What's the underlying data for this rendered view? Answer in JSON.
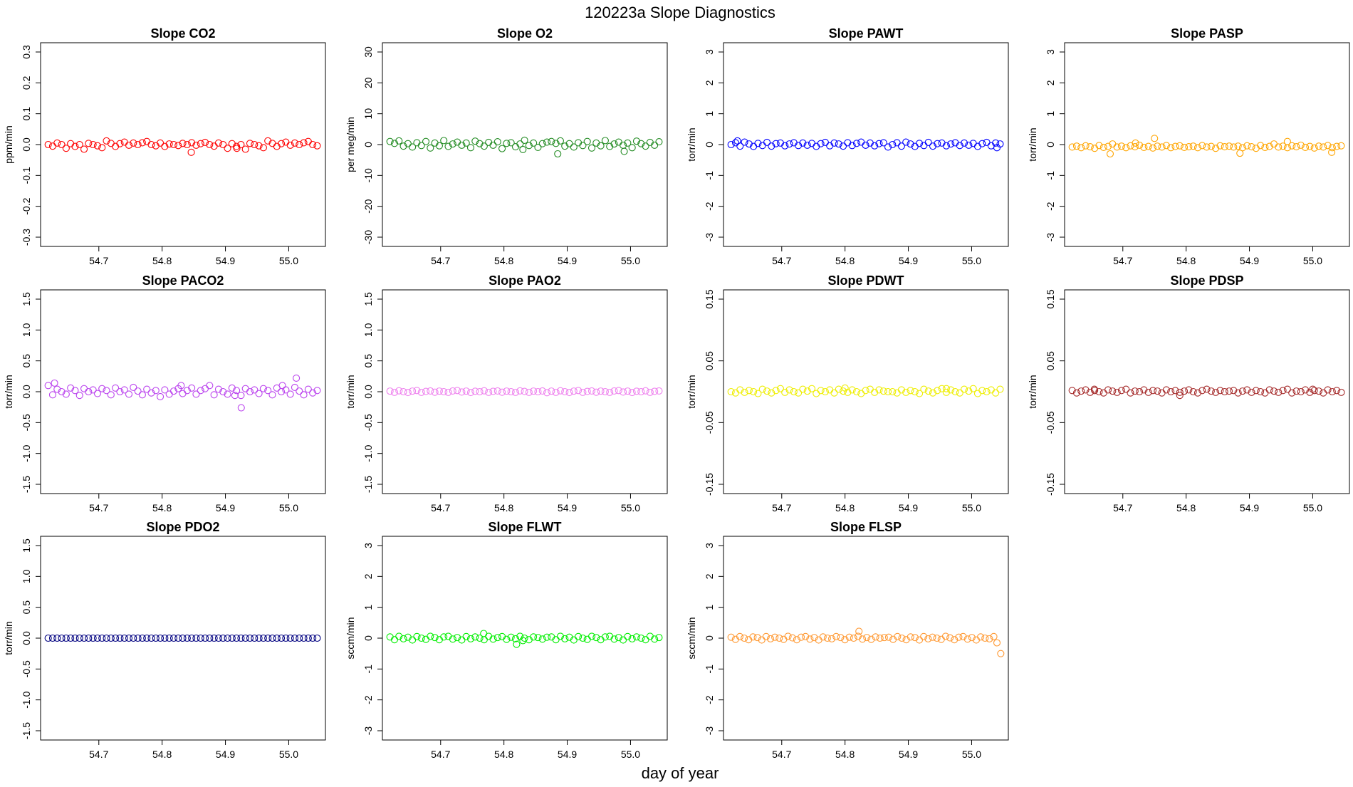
{
  "figure": {
    "title": "120223a   Slope Diagnostics",
    "xlabel": "day of year"
  },
  "chart_data": [
    {
      "type": "scatter",
      "title": "Slope CO2",
      "ylabel": "ppm/min",
      "color": "#ff0000",
      "xlim": [
        54.608,
        55.058
      ],
      "ylim": [
        -0.33,
        0.33
      ],
      "xticks": [
        54.7,
        54.8,
        54.9,
        55.0
      ],
      "yticks": [
        -0.3,
        -0.2,
        -0.1,
        0.0,
        0.1,
        0.2,
        0.3
      ],
      "ytick_labels": [
        "-0.3",
        "-0.2",
        "-0.1",
        "0.0",
        "0.1",
        "0.2",
        "0.3"
      ],
      "x_start": 54.62,
      "x_end": 55.045,
      "base": [
        0,
        -0.005,
        0.005,
        0,
        -0.012,
        0.003,
        -0.006,
        0,
        -0.015,
        0.004,
        0,
        -0.004,
        -0.01,
        0.012,
        0.004,
        -0.006,
        0.003,
        0.008,
        -0.002,
        0.005,
        0,
        0.006,
        0.01,
        0,
        -0.004,
        0.005,
        -0.006,
        0.002,
        0,
        -0.003,
        0.004,
        0,
        0.006,
        -0.002,
        0.003,
        0.007
      ],
      "points": [
        [
          54.846,
          -0.025
        ],
        [
          54.918,
          -0.012
        ]
      ]
    },
    {
      "type": "scatter",
      "title": "Slope O2",
      "ylabel": "per meg/min",
      "color": "#228B22",
      "xlim": [
        54.608,
        55.058
      ],
      "ylim": [
        -33,
        33
      ],
      "xticks": [
        54.7,
        54.8,
        54.9,
        55.0
      ],
      "yticks": [
        -30,
        -20,
        -10,
        0,
        10,
        20,
        30
      ],
      "ytick_labels": [
        "-30",
        "-20",
        "-10",
        "0",
        "10",
        "20",
        "30"
      ],
      "x_start": 54.62,
      "x_end": 55.045,
      "base": [
        1.0,
        0.4,
        1.2,
        -0.5,
        0.3,
        -0.8,
        0.6,
        -0.3,
        1.0,
        -1.1,
        0.5,
        -0.4,
        1.3,
        -0.6,
        0.2,
        0.8,
        -0.2,
        0.5,
        -1.0,
        1.1,
        0.3,
        -0.5,
        0.7,
        -0.2,
        0.9,
        -1.3,
        0.4,
        0.6,
        -0.7,
        0.2,
        1.4,
        -0.3,
        0.5,
        -0.9,
        0.3,
        0.8
      ],
      "points": [
        [
          54.885,
          -3.0
        ],
        [
          54.99,
          -2.2
        ],
        [
          54.83,
          -1.6
        ]
      ]
    },
    {
      "type": "scatter",
      "title": "Slope PAWT",
      "ylabel": "torr/min",
      "color": "#0000ff",
      "xlim": [
        54.608,
        55.058
      ],
      "ylim": [
        -3.3,
        3.3
      ],
      "xticks": [
        54.7,
        54.8,
        54.9,
        55.0
      ],
      "yticks": [
        -3,
        -2,
        -1,
        0,
        1,
        2,
        3
      ],
      "ytick_labels": [
        "-3",
        "-2",
        "-1",
        "0",
        "1",
        "2",
        "3"
      ],
      "x_start": 54.62,
      "x_end": 55.045,
      "base": [
        0.0,
        0.06,
        -0.05,
        0.08,
        0.02,
        -0.06,
        0.04,
        -0.03,
        0.07,
        -0.05,
        0.03,
        0.05,
        -0.04,
        0.02,
        0.06,
        -0.03,
        0.05,
        -0.02,
        0.04,
        -0.06,
        0.03,
        0.07,
        -0.04,
        0.05,
        0.02,
        -0.05,
        0.06,
        -0.03,
        0.04,
        0.08,
        -0.02,
        0.05,
        -0.04,
        0.03,
        0.06,
        -0.08
      ],
      "points": [
        [
          54.63,
          0.12
        ],
        [
          55.04,
          -0.1
        ]
      ]
    },
    {
      "type": "scatter",
      "title": "Slope PASP",
      "ylabel": "torr/min",
      "color": "#ffa500",
      "xlim": [
        54.608,
        55.058
      ],
      "ylim": [
        -3.3,
        3.3
      ],
      "xticks": [
        54.7,
        54.8,
        54.9,
        55.0
      ],
      "yticks": [
        -3,
        -2,
        -1,
        0,
        1,
        2,
        3
      ],
      "ytick_labels": [
        "-3",
        "-2",
        "-1",
        "0",
        "1",
        "2",
        "3"
      ],
      "x_start": 54.62,
      "x_end": 55.045,
      "base": [
        -0.08,
        -0.05,
        -0.1,
        -0.04,
        -0.07,
        -0.12,
        -0.03,
        -0.09,
        -0.06,
        0.02,
        -0.08,
        -0.05,
        -0.1,
        -0.04,
        -0.07,
        -0.02,
        -0.09,
        -0.06,
        -0.11,
        -0.05,
        -0.08,
        -0.03,
        -0.1,
        -0.06,
        -0.04,
        -0.09,
        -0.07,
        -0.05,
        -0.1,
        -0.03,
        -0.08,
        -0.06,
        -0.12,
        -0.04,
        -0.07,
        -0.05
      ],
      "points": [
        [
          54.75,
          0.2
        ],
        [
          54.68,
          -0.3
        ],
        [
          54.885,
          -0.28
        ],
        [
          55.03,
          -0.25
        ],
        [
          54.96,
          0.1
        ],
        [
          54.72,
          0.05
        ]
      ]
    },
    {
      "type": "scatter",
      "title": "Slope PACO2",
      "ylabel": "torr/min",
      "color": "#bb44ee",
      "xlim": [
        54.608,
        55.058
      ],
      "ylim": [
        -1.65,
        1.65
      ],
      "xticks": [
        54.7,
        54.8,
        54.9,
        55.0
      ],
      "yticks": [
        -1.5,
        -1.0,
        -0.5,
        0.0,
        0.5,
        1.0,
        1.5
      ],
      "ytick_labels": [
        "-1.5",
        "-1.0",
        "-0.5",
        "0.0",
        "0.5",
        "1.0",
        "1.5"
      ],
      "x_start": 54.62,
      "x_end": 55.045,
      "base": [
        0.1,
        -0.05,
        0.04,
        0.0,
        -0.04,
        0.06,
        0.02,
        -0.06,
        0.05,
        0.0,
        0.03,
        -0.03,
        0.05,
        0.02,
        -0.05,
        0.06,
        0.0,
        0.03,
        -0.04,
        0.07,
        0.01,
        -0.05,
        0.04,
        -0.02,
        0.02,
        -0.08,
        0.03,
        -0.04,
        0.01,
        0.05,
        -0.03,
        0.02,
        0.06,
        -0.04,
        0.02,
        0.05
      ],
      "points": [
        [
          54.63,
          0.14
        ],
        [
          54.925,
          -0.26
        ],
        [
          55.012,
          0.22
        ],
        [
          54.83,
          0.1
        ],
        [
          54.915,
          -0.06
        ],
        [
          54.99,
          0.1
        ]
      ]
    },
    {
      "type": "scatter",
      "title": "Slope PAO2",
      "ylabel": "torr/min",
      "color": "#ee82ee",
      "xlim": [
        54.608,
        55.058
      ],
      "ylim": [
        -1.65,
        1.65
      ],
      "xticks": [
        54.7,
        54.8,
        54.9,
        55.0
      ],
      "yticks": [
        -1.5,
        -1.0,
        -0.5,
        0.0,
        0.5,
        1.0,
        1.5
      ],
      "ytick_labels": [
        "-1.5",
        "-1.0",
        "-0.5",
        "0.0",
        "0.5",
        "1.0",
        "1.5"
      ],
      "x_start": 54.62,
      "x_end": 55.045,
      "base": [
        0.01,
        -0.01,
        0.015,
        0.0,
        -0.012,
        0.01,
        0.02,
        -0.01,
        0.005,
        0.012,
        -0.008,
        0.01,
        0.0,
        -0.01,
        0.012,
        0.02,
        -0.005,
        0.01,
        -0.012,
        0.008,
        0.0,
        0.015,
        -0.01,
        0.006,
        0.012,
        -0.008,
        0.01,
        0.0,
        -0.01,
        0.014,
        0.005,
        -0.01,
        0.01,
        0.0,
        0.012,
        -0.015
      ],
      "points": []
    },
    {
      "type": "scatter",
      "title": "Slope PDWT",
      "ylabel": "torr/min",
      "color": "#eeee00",
      "xlim": [
        54.608,
        55.058
      ],
      "ylim": [
        -0.165,
        0.165
      ],
      "xticks": [
        54.7,
        54.8,
        54.9,
        55.0
      ],
      "yticks": [
        -0.15,
        -0.05,
        0.05,
        0.15
      ],
      "ytick_labels": [
        "-0.15",
        "-0.05",
        "0.05",
        "0.15"
      ],
      "x_start": 54.62,
      "x_end": 55.045,
      "base": [
        0.0,
        -0.002,
        0.003,
        -0.001,
        0.002,
        0.0,
        -0.003,
        0.004,
        0.001,
        -0.002,
        0.002,
        0.005,
        -0.001,
        0.003,
        0.0,
        -0.002,
        0.004,
        0.001,
        0.005,
        -0.003,
        0.002,
        0.0,
        0.003,
        -0.002,
        0.004,
        0.001,
        -0.001,
        0.003,
        0.0,
        -0.003,
        0.002,
        0.004,
        -0.001,
        0.003,
        0.001,
        0.0
      ],
      "points": [
        [
          54.8,
          0.006
        ],
        [
          54.96,
          0.005
        ]
      ]
    },
    {
      "type": "scatter",
      "title": "Slope PDSP",
      "ylabel": "torr/min",
      "color": "#a52a2a",
      "xlim": [
        54.608,
        55.058
      ],
      "ylim": [
        -0.165,
        0.165
      ],
      "xticks": [
        54.7,
        54.8,
        54.9,
        55.0
      ],
      "yticks": [
        -0.15,
        -0.05,
        0.05,
        0.15
      ],
      "ytick_labels": [
        "-0.15",
        "-0.05",
        "0.05",
        "0.15"
      ],
      "x_start": 54.62,
      "x_end": 55.045,
      "base": [
        0.002,
        -0.002,
        0.001,
        0.003,
        -0.001,
        0.002,
        0.0,
        -0.002,
        0.003,
        0.001,
        -0.001,
        0.002,
        0.004,
        -0.002,
        0.001,
        0.0,
        0.003,
        -0.001,
        0.002,
        0.001,
        -0.002,
        0.003,
        0.0,
        0.002,
        -0.001,
        0.001,
        0.003,
        0.0,
        -0.002,
        0.002,
        0.004,
        0.001,
        -0.001,
        0.002,
        0.0,
        0.001
      ],
      "points": [
        [
          54.79,
          -0.006
        ],
        [
          55.0,
          0.004
        ],
        [
          54.655,
          0.004
        ]
      ]
    },
    {
      "type": "scatter",
      "title": "Slope PDO2",
      "ylabel": "torr/min",
      "color": "#000080",
      "xlim": [
        54.608,
        55.058
      ],
      "ylim": [
        -1.65,
        1.65
      ],
      "xticks": [
        54.7,
        54.8,
        54.9,
        55.0
      ],
      "yticks": [
        -1.5,
        -1.0,
        -0.5,
        0.0,
        0.5,
        1.0,
        1.5
      ],
      "ytick_labels": [
        "-1.5",
        "-1.0",
        "-0.5",
        "0.0",
        "0.5",
        "1.0",
        "1.5"
      ],
      "x_start": 54.62,
      "x_end": 55.045,
      "base": [
        0.0
      ],
      "points": []
    },
    {
      "type": "scatter",
      "title": "Slope FLWT",
      "ylabel": "sccm/min",
      "color": "#00ee00",
      "xlim": [
        54.608,
        55.058
      ],
      "ylim": [
        -3.3,
        3.3
      ],
      "xticks": [
        54.7,
        54.8,
        54.9,
        55.0
      ],
      "yticks": [
        -3,
        -2,
        -1,
        0,
        1,
        2,
        3
      ],
      "ytick_labels": [
        "-3",
        "-2",
        "-1",
        "0",
        "1",
        "2",
        "3"
      ],
      "x_start": 54.62,
      "x_end": 55.045,
      "base": [
        0.04,
        -0.05,
        0.06,
        -0.02,
        0.03,
        -0.06,
        0.05,
        0.0,
        -0.04,
        0.06,
        0.02,
        -0.05,
        0.04,
        0.06,
        -0.03,
        0.02,
        -0.06,
        0.05,
        -0.02,
        0.04,
        0.0,
        -0.05,
        0.06,
        -0.03,
        0.02,
        0.05,
        -0.04,
        0.03,
        -0.02,
        0.06,
        0.0,
        -0.05,
        0.04,
        0.02,
        -0.03,
        0.03
      ],
      "points": [
        [
          54.768,
          0.15
        ],
        [
          54.82,
          -0.2
        ],
        [
          54.83,
          -0.08
        ]
      ]
    },
    {
      "type": "scatter",
      "title": "Slope FLSP",
      "ylabel": "sccm/min",
      "color": "#ff9933",
      "xlim": [
        54.608,
        55.058
      ],
      "ylim": [
        -3.3,
        3.3
      ],
      "xticks": [
        54.7,
        54.8,
        54.9,
        55.0
      ],
      "yticks": [
        -3,
        -2,
        -1,
        0,
        1,
        2,
        3
      ],
      "ytick_labels": [
        "-3",
        "-2",
        "-1",
        "0",
        "1",
        "2",
        "3"
      ],
      "x_start": 54.62,
      "x_end": 55.035,
      "base": [
        0.03,
        -0.04,
        0.05,
        0.0,
        -0.05,
        0.04,
        0.02,
        -0.06,
        0.05,
        -0.02,
        0.03,
        0.0,
        -0.04,
        0.06,
        0.01,
        -0.05,
        0.03,
        0.05,
        -0.03,
        0.02,
        -0.06,
        0.04,
        0.0,
        -0.02,
        0.05,
        0.02,
        -0.05,
        0.03,
        0.0,
        0.06,
        -0.03,
        0.02,
        -0.04,
        0.04,
        0.0,
        0.02
      ],
      "points": [
        [
          54.822,
          0.22
        ],
        [
          55.04,
          -0.15
        ],
        [
          55.046,
          -0.5
        ]
      ]
    }
  ]
}
